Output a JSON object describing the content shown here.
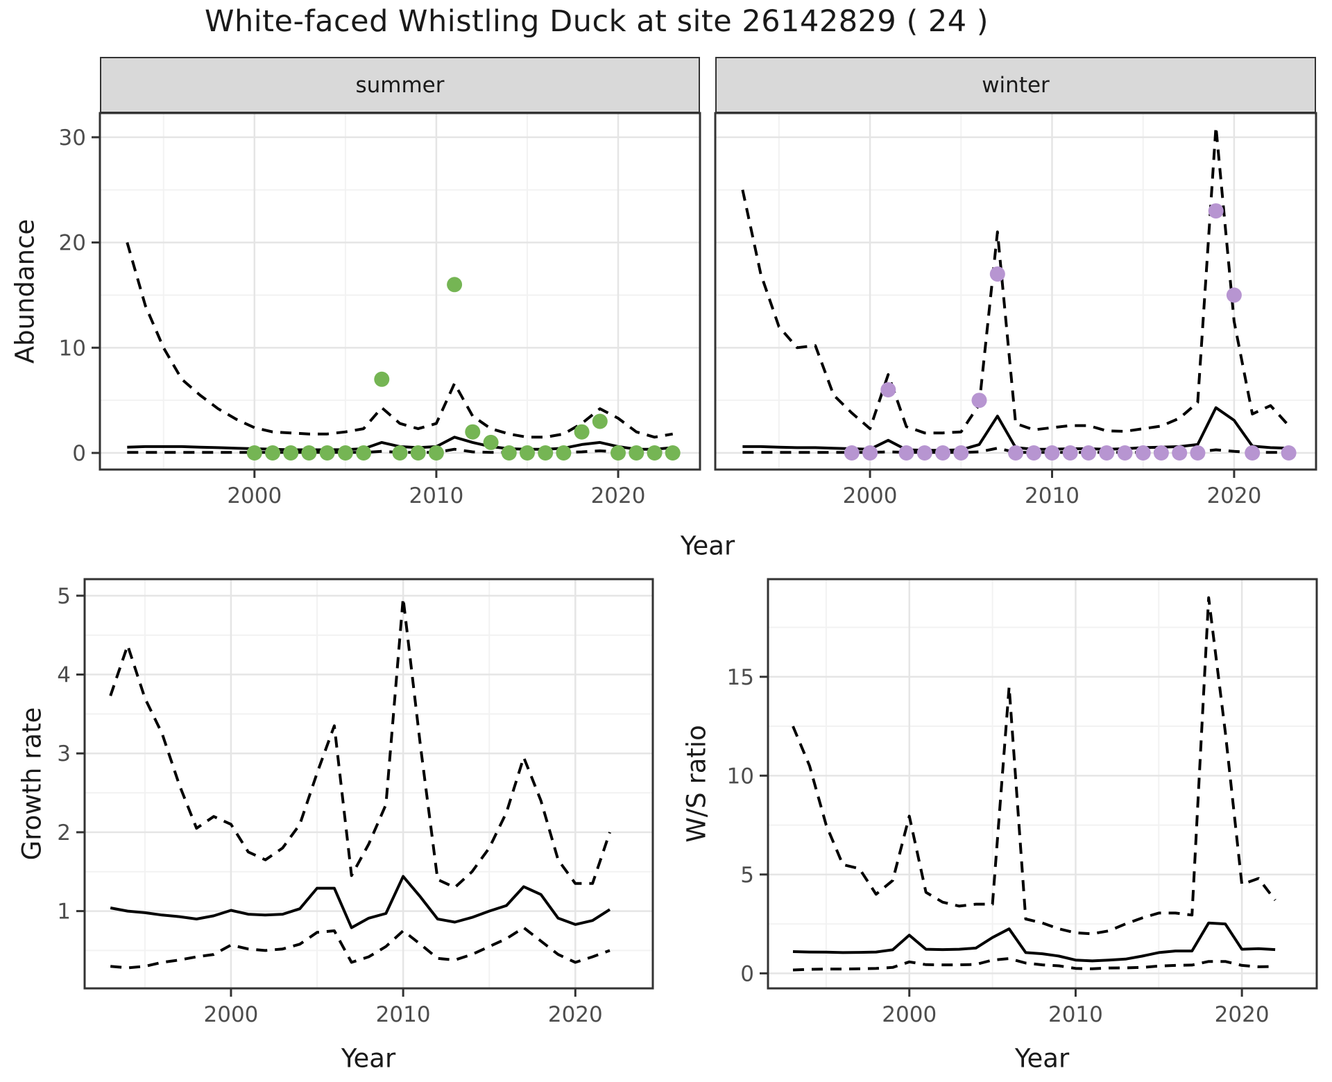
{
  "title": "White-faced Whistling Duck at site 26142829 ( 24 )",
  "top_axis": {
    "ylabel": "Abundance",
    "xlabel": "Year"
  },
  "facets": [
    {
      "label": "summer"
    },
    {
      "label": "winter"
    }
  ],
  "colors": {
    "summer_point": "#75B554",
    "winter_point": "#B795D1",
    "line": "#000000",
    "grid_major": "#E5E5E5",
    "grid_minor": "#F2F2F2",
    "strip_bg": "#D9D9D9",
    "panel_border": "#333333",
    "tick_text": "#4D4D4D"
  },
  "chart_data": [
    {
      "id": "abundance_summer",
      "type": "line",
      "title": "summer",
      "xlabel": "Year",
      "ylabel": "Abundance",
      "xlim": [
        1991.5,
        2024.5
      ],
      "ylim": [
        -1.58,
        32.3
      ],
      "xticks": [
        2000,
        2010,
        2020
      ],
      "yticks": [
        0,
        10,
        20,
        30
      ],
      "xminor": [
        1995,
        2005,
        2015
      ],
      "yminor": [
        5,
        15,
        25
      ],
      "grid": true,
      "legend": "none",
      "x": [
        1993,
        1994,
        1995,
        1996,
        1997,
        1998,
        1999,
        2000,
        2001,
        2002,
        2003,
        2004,
        2005,
        2006,
        2007,
        2008,
        2009,
        2010,
        2011,
        2012,
        2013,
        2014,
        2015,
        2016,
        2017,
        2018,
        2019,
        2020,
        2021,
        2022,
        2023
      ],
      "series": [
        {
          "name": "upper CI",
          "style": "dashed",
          "values": [
            20,
            14,
            10,
            7,
            5.5,
            4.2,
            3.2,
            2.4,
            2.0,
            1.9,
            1.8,
            1.8,
            2.0,
            2.3,
            4.3,
            2.8,
            2.3,
            2.8,
            6.6,
            3.5,
            2.3,
            1.8,
            1.5,
            1.5,
            1.8,
            2.8,
            4.2,
            3.3,
            2.0,
            1.5,
            1.8
          ]
        },
        {
          "name": "median",
          "style": "solid",
          "values": [
            0.55,
            0.6,
            0.6,
            0.6,
            0.55,
            0.5,
            0.45,
            0.4,
            0.35,
            0.3,
            0.3,
            0.3,
            0.32,
            0.4,
            1.0,
            0.6,
            0.5,
            0.6,
            1.5,
            1.0,
            0.6,
            0.4,
            0.35,
            0.35,
            0.45,
            0.8,
            1.0,
            0.6,
            0.35,
            0.35,
            0.5
          ]
        },
        {
          "name": "lower CI",
          "style": "dashed",
          "values": [
            0.05,
            0.05,
            0.05,
            0.05,
            0.05,
            0.05,
            0.05,
            0.05,
            0.05,
            0.05,
            0.05,
            0.05,
            0.05,
            0.05,
            0.15,
            0.05,
            0.05,
            0.05,
            0.35,
            0.1,
            0.05,
            0.05,
            0.05,
            0.05,
            0.05,
            0.1,
            0.2,
            0.1,
            0.05,
            0.05,
            0.05
          ]
        }
      ],
      "points": {
        "name": "observed summer counts",
        "x": [
          2000,
          2001,
          2002,
          2003,
          2004,
          2005,
          2006,
          2007,
          2008,
          2009,
          2010,
          2011,
          2012,
          2013,
          2014,
          2015,
          2016,
          2017,
          2018,
          2019,
          2020,
          2021,
          2022,
          2023
        ],
        "y": [
          0,
          0,
          0,
          0,
          0,
          0,
          0,
          7,
          0,
          0,
          0,
          16,
          2,
          1,
          0,
          0,
          0,
          0,
          2,
          3,
          0,
          0,
          0,
          0
        ],
        "color": "#75B554"
      }
    },
    {
      "id": "abundance_winter",
      "type": "line",
      "title": "winter",
      "xlabel": "Year",
      "ylabel": "Abundance",
      "xlim": [
        1991.5,
        2024.5
      ],
      "ylim": [
        -1.58,
        32.3
      ],
      "xticks": [
        2000,
        2010,
        2020
      ],
      "yticks": [
        0,
        10,
        20,
        30
      ],
      "xminor": [
        1995,
        2005,
        2015
      ],
      "yminor": [
        5,
        15,
        25
      ],
      "grid": true,
      "legend": "none",
      "x": [
        1993,
        1994,
        1995,
        1996,
        1997,
        1998,
        1999,
        2000,
        2001,
        2002,
        2003,
        2004,
        2005,
        2006,
        2007,
        2008,
        2009,
        2010,
        2011,
        2012,
        2013,
        2014,
        2015,
        2016,
        2017,
        2018,
        2019,
        2020,
        2021,
        2022,
        2023
      ],
      "series": [
        {
          "name": "upper CI",
          "style": "dashed",
          "values": [
            25,
            17,
            12,
            10,
            10.2,
            5.5,
            3.8,
            2.3,
            7.45,
            2.5,
            1.9,
            1.9,
            2.0,
            4.6,
            21,
            2.8,
            2.2,
            2.4,
            2.6,
            2.6,
            2.1,
            2.05,
            2.3,
            2.55,
            3.3,
            4.8,
            31,
            12.5,
            3.7,
            4.5,
            2.6
          ]
        },
        {
          "name": "median",
          "style": "solid",
          "values": [
            0.6,
            0.6,
            0.55,
            0.5,
            0.5,
            0.45,
            0.4,
            0.35,
            1.2,
            0.3,
            0.25,
            0.25,
            0.3,
            0.8,
            3.5,
            0.5,
            0.35,
            0.35,
            0.4,
            0.4,
            0.35,
            0.4,
            0.5,
            0.55,
            0.6,
            0.8,
            4.3,
            3.1,
            0.65,
            0.5,
            0.45
          ]
        },
        {
          "name": "lower CI",
          "style": "dashed",
          "values": [
            0.05,
            0.05,
            0.05,
            0.05,
            0.05,
            0.05,
            0.05,
            0.05,
            0.1,
            0.05,
            0.05,
            0.05,
            0.05,
            0.1,
            0.45,
            0.05,
            0.05,
            0.05,
            0.05,
            0.05,
            0.05,
            0.05,
            0.05,
            0.05,
            0.05,
            0.1,
            0.3,
            0.15,
            0.05,
            0.05,
            0.05
          ]
        }
      ],
      "points": {
        "name": "observed winter counts",
        "x": [
          1999,
          2000,
          2001,
          2002,
          2003,
          2004,
          2005,
          2006,
          2007,
          2008,
          2009,
          2010,
          2011,
          2012,
          2013,
          2014,
          2015,
          2016,
          2017,
          2018,
          2019,
          2020,
          2021,
          2023
        ],
        "y": [
          0,
          0,
          6,
          0,
          0,
          0,
          0,
          5,
          17,
          0,
          0,
          0,
          0,
          0,
          0,
          0,
          0,
          0,
          0,
          0,
          23,
          15,
          0,
          0
        ],
        "color": "#B795D1"
      }
    },
    {
      "id": "growth_rate",
      "type": "line",
      "title": "",
      "xlabel": "Year",
      "ylabel": "Growth rate",
      "xlim": [
        1991.5,
        2024.5
      ],
      "ylim": [
        0.02,
        5.21
      ],
      "xticks": [
        2000,
        2010,
        2020
      ],
      "yticks": [
        1,
        2,
        3,
        4,
        5
      ],
      "xminor": [
        1995,
        2005,
        2015
      ],
      "yminor": [
        0.5,
        1.5,
        2.5,
        3.5,
        4.5
      ],
      "grid": true,
      "legend": "none",
      "x": [
        1993,
        1994,
        1995,
        1996,
        1997,
        1998,
        1999,
        2000,
        2001,
        2002,
        2003,
        2004,
        2005,
        2006,
        2007,
        2008,
        2009,
        2010,
        2011,
        2012,
        2013,
        2014,
        2015,
        2016,
        2017,
        2018,
        2019,
        2020,
        2021,
        2022
      ],
      "series": [
        {
          "name": "upper CI",
          "style": "dashed",
          "values": [
            3.73,
            4.37,
            3.7,
            3.25,
            2.6,
            2.05,
            2.2,
            2.1,
            1.75,
            1.65,
            1.8,
            2.1,
            2.75,
            3.35,
            1.45,
            1.85,
            2.35,
            4.97,
            3.1,
            1.4,
            1.3,
            1.5,
            1.8,
            2.25,
            2.95,
            2.4,
            1.65,
            1.35,
            1.35,
            2.0
          ]
        },
        {
          "name": "median",
          "style": "solid",
          "values": [
            1.04,
            1.0,
            0.98,
            0.95,
            0.93,
            0.9,
            0.94,
            1.01,
            0.96,
            0.95,
            0.96,
            1.03,
            1.29,
            1.29,
            0.79,
            0.91,
            0.97,
            1.44,
            1.18,
            0.9,
            0.86,
            0.92,
            1.0,
            1.07,
            1.31,
            1.21,
            0.91,
            0.83,
            0.88,
            1.02
          ]
        },
        {
          "name": "lower CI",
          "style": "dashed",
          "values": [
            0.3,
            0.28,
            0.3,
            0.35,
            0.38,
            0.42,
            0.45,
            0.57,
            0.52,
            0.5,
            0.52,
            0.58,
            0.73,
            0.75,
            0.35,
            0.42,
            0.55,
            0.75,
            0.58,
            0.4,
            0.38,
            0.45,
            0.55,
            0.65,
            0.79,
            0.62,
            0.45,
            0.35,
            0.42,
            0.5
          ]
        }
      ],
      "points": null
    },
    {
      "id": "ws_ratio",
      "type": "line",
      "title": "",
      "xlabel": "Year",
      "ylabel": "W/S ratio",
      "xlim": [
        1991.5,
        2024.5
      ],
      "ylim": [
        -0.76,
        19.94
      ],
      "xticks": [
        2000,
        2010,
        2020
      ],
      "yticks": [
        0,
        5,
        10,
        15
      ],
      "xminor": [
        1995,
        2005,
        2015
      ],
      "yminor": [
        2.5,
        7.5,
        12.5,
        17.5
      ],
      "grid": true,
      "legend": "none",
      "x": [
        1993,
        1994,
        1995,
        1996,
        1997,
        1998,
        1999,
        2000,
        2001,
        2002,
        2003,
        2004,
        2005,
        2006,
        2007,
        2008,
        2009,
        2010,
        2011,
        2012,
        2013,
        2014,
        2015,
        2016,
        2017,
        2018,
        2019,
        2020,
        2021,
        2022
      ],
      "series": [
        {
          "name": "upper CI",
          "style": "dashed",
          "values": [
            12.5,
            10.5,
            7.5,
            5.5,
            5.3,
            4.0,
            4.7,
            7.95,
            4.1,
            3.6,
            3.4,
            3.5,
            3.5,
            14.5,
            2.75,
            2.55,
            2.25,
            2.05,
            2.0,
            2.15,
            2.5,
            2.8,
            3.05,
            3.05,
            2.95,
            19.0,
            12.2,
            4.5,
            4.8,
            3.7
          ]
        },
        {
          "name": "median",
          "style": "solid",
          "values": [
            1.1,
            1.08,
            1.07,
            1.05,
            1.06,
            1.08,
            1.19,
            1.93,
            1.22,
            1.2,
            1.22,
            1.28,
            1.81,
            2.25,
            1.05,
            0.99,
            0.87,
            0.67,
            0.63,
            0.67,
            0.72,
            0.87,
            1.05,
            1.13,
            1.13,
            2.55,
            2.5,
            1.22,
            1.25,
            1.2
          ]
        },
        {
          "name": "lower CI",
          "style": "dashed",
          "values": [
            0.17,
            0.2,
            0.22,
            0.22,
            0.23,
            0.25,
            0.3,
            0.58,
            0.44,
            0.43,
            0.43,
            0.45,
            0.67,
            0.75,
            0.52,
            0.43,
            0.38,
            0.25,
            0.23,
            0.27,
            0.28,
            0.3,
            0.37,
            0.4,
            0.42,
            0.6,
            0.6,
            0.4,
            0.33,
            0.35
          ]
        }
      ],
      "points": null
    }
  ]
}
